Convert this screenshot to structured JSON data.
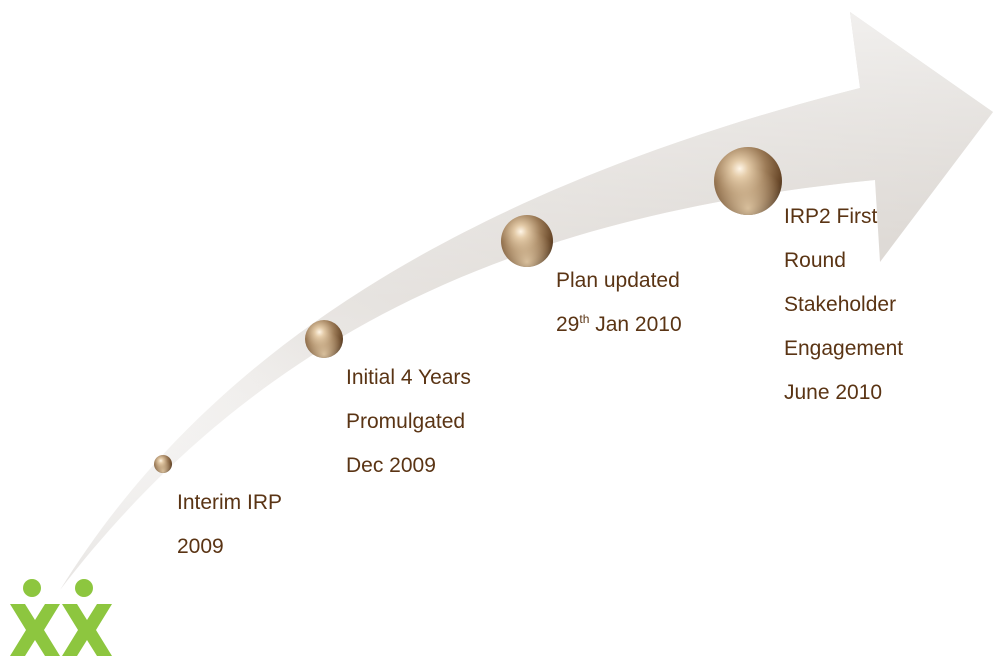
{
  "milestones": [
    {
      "lines": [
        "Interim IRP",
        "2009"
      ]
    },
    {
      "lines": [
        "Initial 4 Years",
        "Promulgated",
        "Dec 2009"
      ]
    },
    {
      "line1": "Plan updated",
      "day": "29",
      "suffix": "th",
      "rest": " Jan 2010"
    },
    {
      "lines": [
        "IRP2 First",
        "Round",
        "Stakeholder",
        "Engagement",
        "June 2010"
      ]
    }
  ],
  "colors": {
    "label_text": "#5a3414",
    "logo_green": "#8dc63f",
    "arrow_light": "#f4f2f0",
    "arrow_dark": "#c9c3be"
  },
  "logo_icon": "two-figures-logo-icon"
}
